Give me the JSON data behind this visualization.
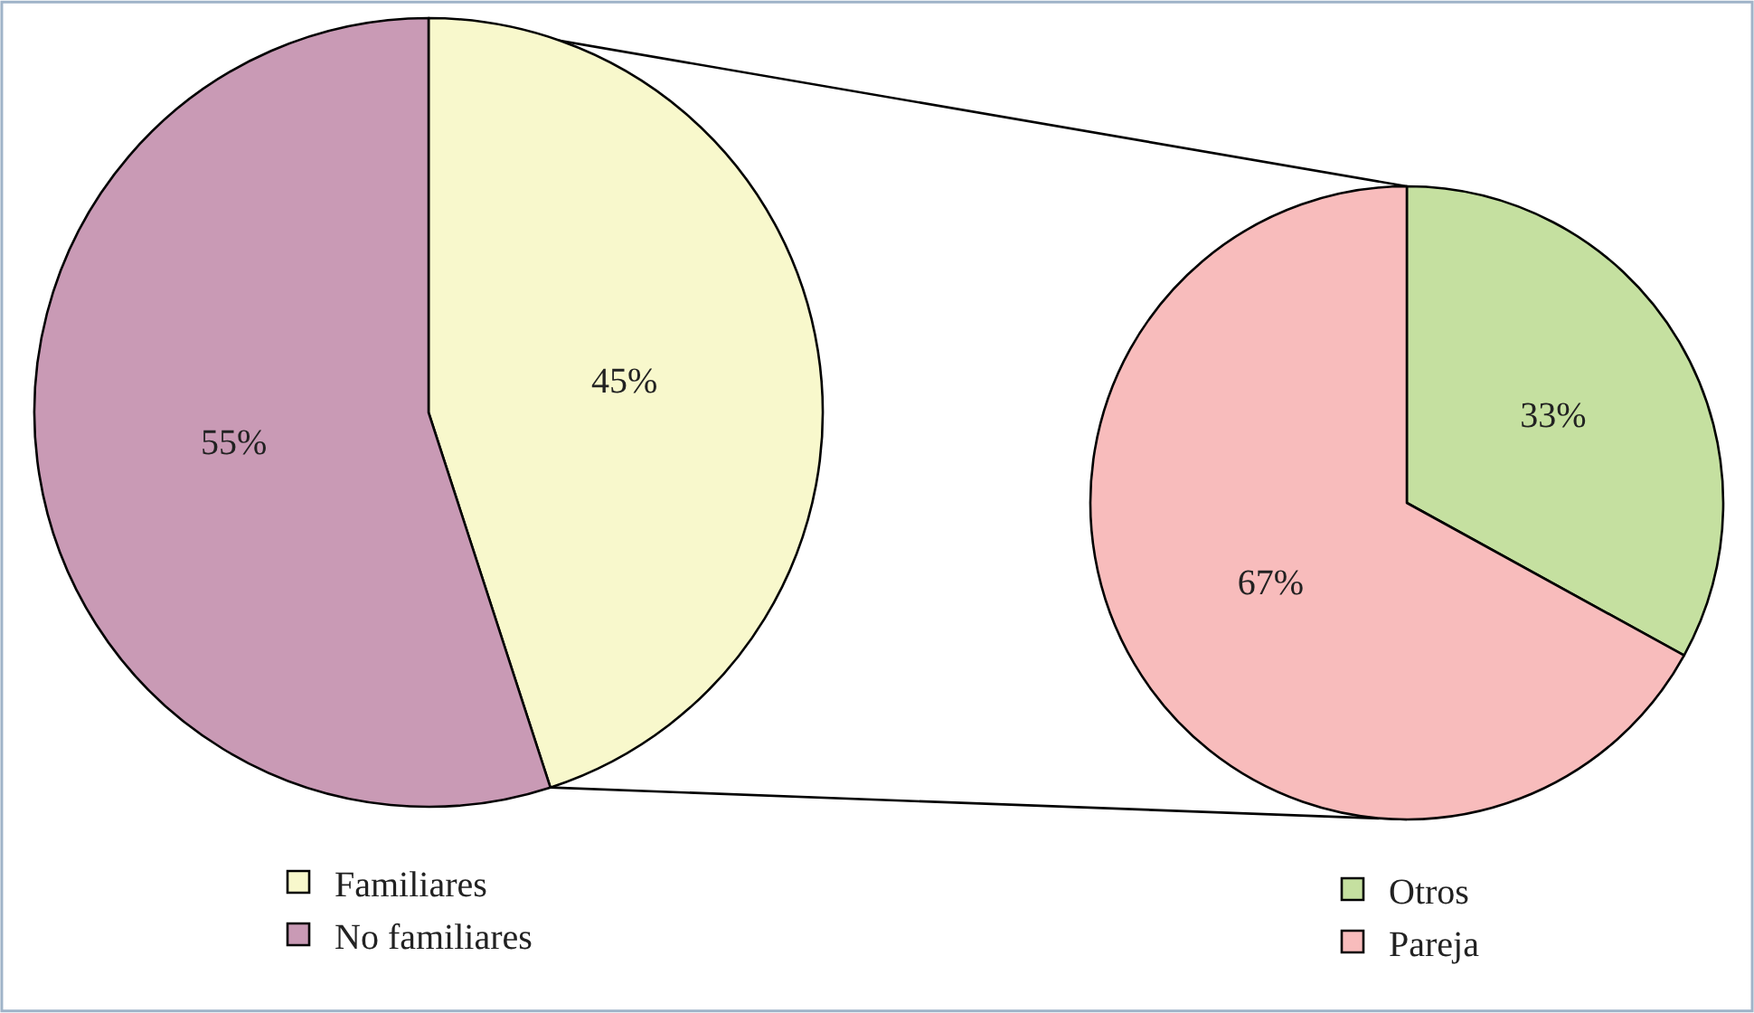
{
  "chart_data": [
    {
      "type": "pie",
      "categories": [
        "Familiares",
        "No familiares"
      ],
      "values": [
        45,
        55
      ],
      "colors": [
        "#f8f8cc",
        "#c99ab5"
      ],
      "value_labels": [
        "45%",
        "55%"
      ],
      "legend": "bottom"
    },
    {
      "type": "pie",
      "categories": [
        "Otros",
        "Pareja"
      ],
      "values": [
        33,
        67
      ],
      "colors": [
        "#c5e0a0",
        "#f8bcbc"
      ],
      "value_labels": [
        "33%",
        "67%"
      ],
      "legend": "bottom"
    }
  ]
}
